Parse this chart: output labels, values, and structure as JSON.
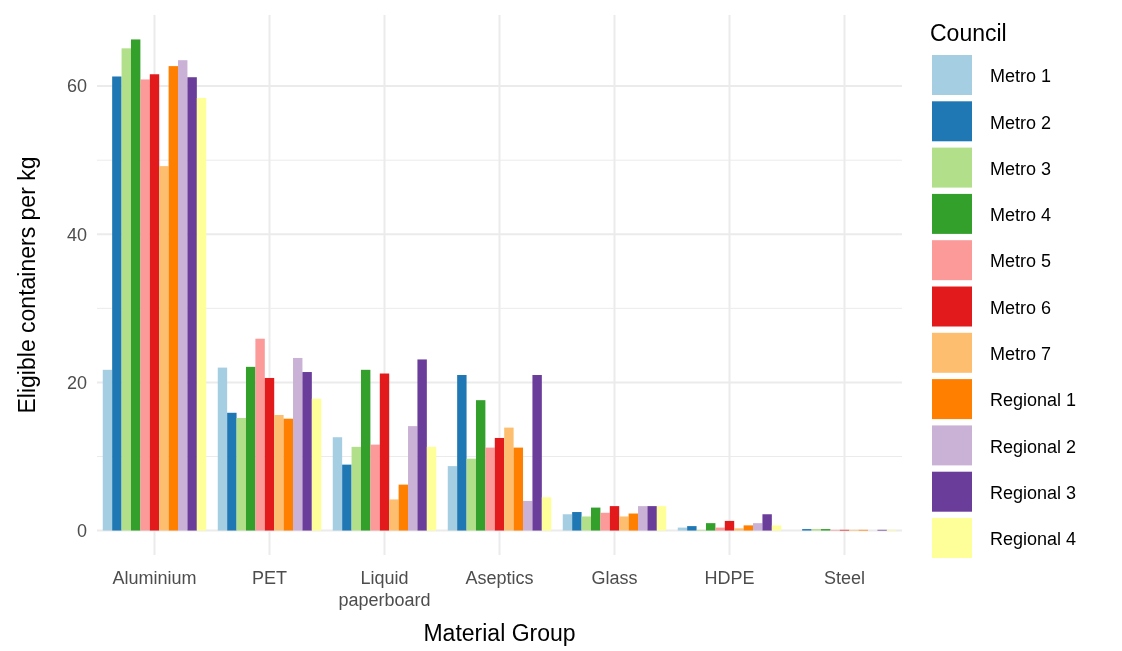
{
  "chart_data": {
    "type": "bar",
    "xlabel": "Material Group",
    "ylabel": "Eligible containers per kg",
    "legend_title": "Council",
    "categories": [
      "Aluminium",
      "PET",
      "Liquid paperboard",
      "Aseptics",
      "Glass",
      "HDPE",
      "Steel"
    ],
    "series": [
      {
        "name": "Metro 1",
        "color": "#a6cee3",
        "values": [
          21.7,
          22.0,
          12.6,
          8.7,
          2.2,
          0.4,
          null
        ]
      },
      {
        "name": "Metro 2",
        "color": "#1f78b4",
        "values": [
          61.3,
          15.9,
          8.9,
          21.0,
          2.5,
          0.6,
          0.2
        ]
      },
      {
        "name": "Metro 3",
        "color": "#b2df8a",
        "values": [
          65.1,
          15.2,
          11.3,
          9.7,
          1.9,
          0.1,
          0.2
        ]
      },
      {
        "name": "Metro 4",
        "color": "#33a02c",
        "values": [
          66.3,
          22.1,
          21.7,
          17.6,
          3.1,
          1.0,
          0.2
        ]
      },
      {
        "name": "Metro 5",
        "color": "#fb9a99",
        "values": [
          60.9,
          25.9,
          11.6,
          11.2,
          2.4,
          0.4,
          0.1
        ]
      },
      {
        "name": "Metro 6",
        "color": "#e31a1c",
        "values": [
          61.6,
          20.6,
          21.2,
          12.5,
          3.3,
          1.3,
          0.1
        ]
      },
      {
        "name": "Metro 7",
        "color": "#fdbf6f",
        "values": [
          49.2,
          15.6,
          4.2,
          13.9,
          1.9,
          0.3,
          0.1
        ]
      },
      {
        "name": "Regional 1",
        "color": "#ff7f00",
        "values": [
          62.7,
          15.1,
          6.2,
          11.2,
          2.3,
          0.7,
          0.1
        ]
      },
      {
        "name": "Regional 2",
        "color": "#cab2d6",
        "values": [
          63.5,
          23.3,
          14.1,
          4.0,
          3.3,
          1.0,
          null
        ]
      },
      {
        "name": "Regional 3",
        "color": "#6a3d9a",
        "values": [
          61.2,
          21.4,
          23.1,
          21.0,
          3.3,
          2.2,
          0.1
        ]
      },
      {
        "name": "Regional 4",
        "color": "#ffff99",
        "values": [
          58.4,
          17.8,
          11.3,
          4.5,
          3.3,
          0.7,
          0.1
        ]
      }
    ],
    "ylim": [
      -3.3,
      69.6
    ],
    "yticks": [
      0,
      {
        "value": 10,
        "label": null
      },
      20,
      {
        "value": 30,
        "label": null
      },
      40,
      {
        "value": 50,
        "label": null
      },
      60
    ],
    "grid": true,
    "legend": "right"
  }
}
